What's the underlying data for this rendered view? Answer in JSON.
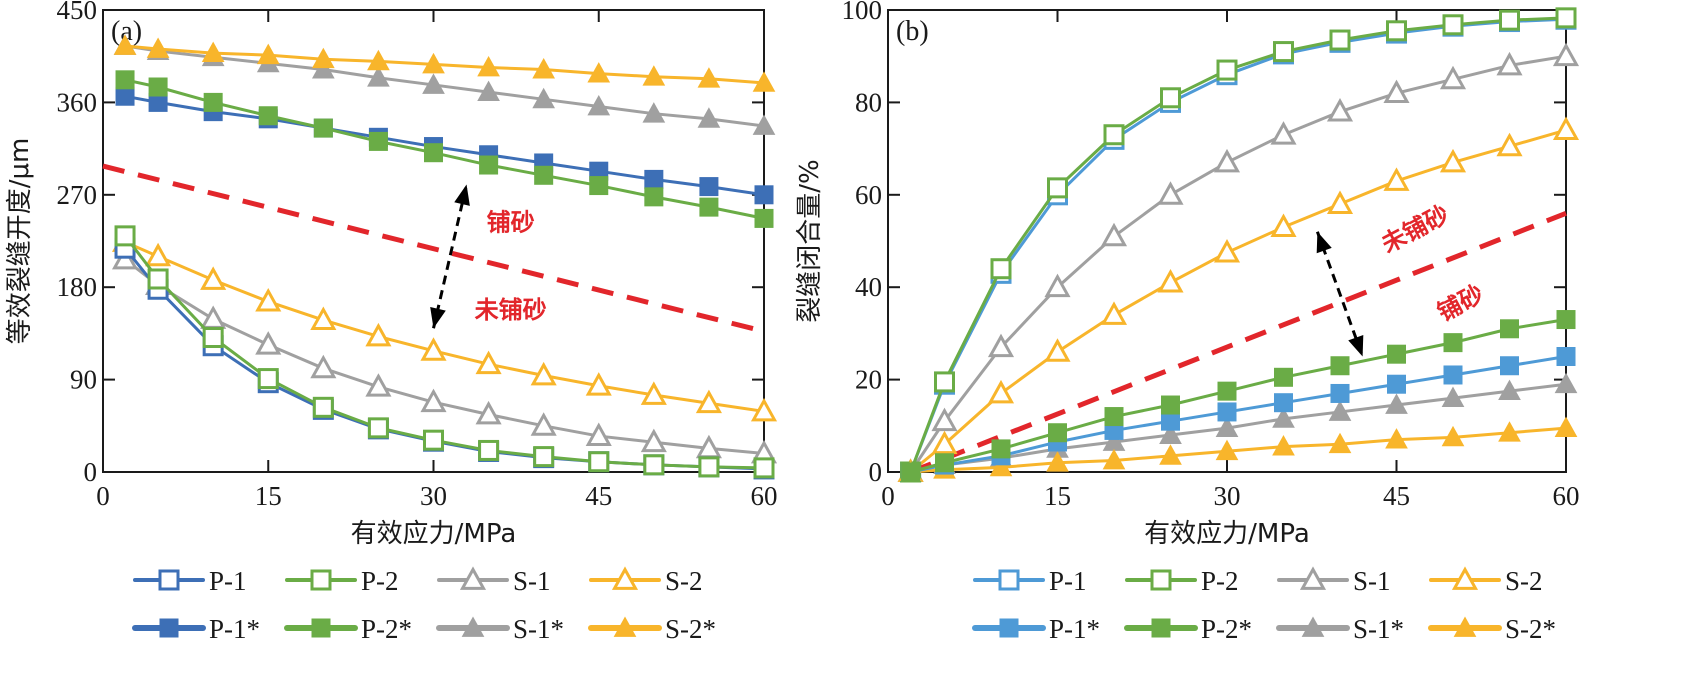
{
  "chart_data": [
    {
      "type": "line",
      "panel_label": "(a)",
      "title": "",
      "xlabel": "有效应力/MPa",
      "ylabel": "等效裂缝开度/μm",
      "xlim": [
        0,
        60
      ],
      "ylim": [
        0,
        450
      ],
      "xticks": [
        0,
        15,
        30,
        45,
        60
      ],
      "yticks": [
        0,
        90,
        180,
        270,
        360,
        450
      ],
      "grid": false,
      "legend_position": "bottom",
      "x": [
        2,
        5,
        10,
        15,
        20,
        25,
        30,
        35,
        40,
        45,
        50,
        55,
        60
      ],
      "series": [
        {
          "name": "P-1",
          "color": "#3d6fb6",
          "marker": "square-open",
          "values": [
            218,
            178,
            123,
            87,
            61,
            42,
            30,
            20,
            14,
            10,
            7,
            5,
            3
          ]
        },
        {
          "name": "P-2",
          "color": "#6aac46",
          "marker": "square-open",
          "values": [
            230,
            188,
            131,
            91,
            63,
            43,
            31,
            21,
            15,
            10,
            7,
            5,
            4
          ]
        },
        {
          "name": "S-1",
          "color": "#a0a0a0",
          "marker": "triangle-open",
          "values": [
            207,
            182,
            149,
            124,
            101,
            83,
            68,
            56,
            45,
            35,
            29,
            23,
            18
          ]
        },
        {
          "name": "S-2",
          "color": "#f8b52b",
          "marker": "triangle-open",
          "values": [
            224,
            210,
            187,
            166,
            148,
            132,
            118,
            105,
            94,
            84,
            75,
            67,
            59
          ]
        },
        {
          "name": "P-1*",
          "color": "#3d6fb6",
          "marker": "square-filled",
          "values": [
            366,
            360,
            351,
            344,
            335,
            326,
            317,
            309,
            301,
            293,
            285,
            278,
            270
          ]
        },
        {
          "name": "P-2*",
          "color": "#6aac46",
          "marker": "square-filled",
          "values": [
            382,
            375,
            360,
            347,
            335,
            322,
            311,
            299,
            289,
            279,
            268,
            258,
            247
          ]
        },
        {
          "name": "S-1*",
          "color": "#a0a0a0",
          "marker": "triangle-filled",
          "values": [
            415,
            410,
            404,
            398,
            392,
            384,
            377,
            370,
            363,
            356,
            349,
            344,
            337
          ]
        },
        {
          "name": "S-2*",
          "color": "#f8b52b",
          "marker": "triangle-filled",
          "values": [
            415,
            412,
            408,
            406,
            402,
            400,
            397,
            394,
            392,
            388,
            385,
            383,
            379
          ]
        }
      ],
      "divider": {
        "color": "#e2262b",
        "style": "dashed",
        "points": [
          [
            0,
            298
          ],
          [
            60,
            137
          ]
        ]
      },
      "annotations": [
        {
          "text": "铺砂",
          "color": "#e2262b",
          "x": 37,
          "y": 235
        },
        {
          "text": "未铺砂",
          "color": "#e2262b",
          "x": 37,
          "y": 150
        }
      ],
      "arrow": {
        "style": "dashed-double",
        "from": [
          30,
          140
        ],
        "to": [
          33,
          280
        ]
      }
    },
    {
      "type": "line",
      "panel_label": "(b)",
      "title": "",
      "xlabel": "有效应力/MPa",
      "ylabel": "裂缝闭合量/%",
      "xlim": [
        0,
        60
      ],
      "ylim": [
        0,
        100
      ],
      "xticks": [
        0,
        15,
        30,
        45,
        60
      ],
      "yticks": [
        0,
        20,
        40,
        60,
        80,
        100
      ],
      "grid": false,
      "legend_position": "bottom",
      "x": [
        2,
        5,
        10,
        15,
        20,
        25,
        30,
        35,
        40,
        45,
        50,
        55,
        60
      ],
      "series": [
        {
          "name": "P-1",
          "color": "#4e9ad6",
          "marker": "square-open",
          "values": [
            0,
            19,
            43,
            60,
            72,
            80,
            86,
            90.5,
            93,
            95,
            96.5,
            97.5,
            98
          ]
        },
        {
          "name": "P-2",
          "color": "#6aac46",
          "marker": "square-open",
          "values": [
            0,
            19.5,
            44,
            61.5,
            73,
            81,
            87,
            91,
            93.5,
            95.5,
            96.8,
            97.8,
            98.3
          ]
        },
        {
          "name": "S-1",
          "color": "#a0a0a0",
          "marker": "triangle-open",
          "values": [
            0,
            11,
            27,
            40,
            51,
            60,
            67,
            73,
            78,
            82,
            85,
            88,
            90
          ]
        },
        {
          "name": "S-2",
          "color": "#f8b52b",
          "marker": "triangle-open",
          "values": [
            0,
            6,
            17,
            26,
            34,
            41,
            47.5,
            53,
            58,
            63,
            67,
            70.5,
            74
          ]
        },
        {
          "name": "P-1*",
          "color": "#4e9ad6",
          "marker": "square-filled",
          "values": [
            0,
            1.5,
            3.5,
            6.5,
            9,
            11,
            13,
            15,
            17,
            19,
            21,
            23,
            25
          ]
        },
        {
          "name": "P-2*",
          "color": "#6aac46",
          "marker": "square-filled",
          "values": [
            0,
            2,
            5,
            8.5,
            12,
            14.5,
            17.5,
            20.5,
            23,
            25.5,
            28,
            31,
            33
          ]
        },
        {
          "name": "S-1*",
          "color": "#a0a0a0",
          "marker": "triangle-filled",
          "values": [
            0,
            1.5,
            3,
            5,
            6.5,
            8,
            9.5,
            11.5,
            13,
            14.5,
            16,
            17.5,
            19
          ]
        },
        {
          "name": "S-2*",
          "color": "#f8b52b",
          "marker": "triangle-filled",
          "values": [
            0,
            0.5,
            1,
            2,
            2.5,
            3.5,
            4.5,
            5.5,
            6,
            7,
            7.5,
            8.5,
            9.5
          ]
        }
      ],
      "divider": {
        "color": "#e2262b",
        "style": "dashed",
        "points": [
          [
            2,
            0
          ],
          [
            60,
            56
          ]
        ]
      },
      "annotations": [
        {
          "text": "未铺砂",
          "color": "#e2262b",
          "x": 47,
          "y": 51
        },
        {
          "text": "铺砂",
          "color": "#e2262b",
          "x": 51,
          "y": 35
        }
      ],
      "arrow": {
        "style": "dashed-double",
        "from": [
          38,
          52
        ],
        "to": [
          42,
          25
        ]
      }
    }
  ]
}
